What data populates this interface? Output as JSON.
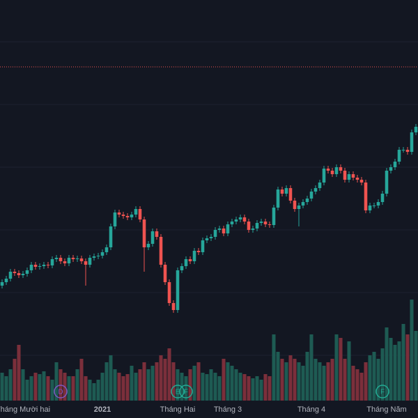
{
  "chart_data": {
    "type": "candlestick",
    "open": [
      165,
      170,
      175,
      185,
      183,
      180,
      182,
      187,
      195,
      192,
      193,
      195,
      194,
      203,
      205,
      200,
      197,
      205,
      203,
      204,
      200,
      195,
      205,
      207,
      208,
      213,
      220,
      250,
      270,
      267,
      265,
      263,
      267,
      275,
      260,
      220,
      225,
      243,
      235,
      195,
      170,
      140,
      130,
      187,
      193,
      203,
      200,
      215,
      213,
      230,
      233,
      235,
      245,
      247,
      240,
      253,
      257,
      260,
      263,
      257,
      245,
      247,
      255,
      257,
      253,
      252,
      277,
      303,
      297,
      305,
      287,
      275,
      280,
      285,
      290,
      300,
      305,
      313,
      333,
      330,
      325,
      335,
      330,
      317,
      325,
      320,
      317,
      313,
      273,
      280,
      280,
      285,
      297,
      330,
      335,
      343,
      360,
      360,
      357,
      385
    ],
    "high": [
      174,
      179,
      189,
      189,
      187,
      186,
      191,
      199,
      199,
      197,
      199,
      199,
      207,
      209,
      209,
      204,
      209,
      209,
      208,
      208,
      204,
      209,
      211,
      212,
      217,
      224,
      254,
      274,
      274,
      271,
      269,
      271,
      279,
      279,
      264,
      229,
      247,
      247,
      239,
      199,
      174,
      144,
      191,
      197,
      207,
      207,
      219,
      219,
      234,
      237,
      239,
      249,
      251,
      251,
      257,
      261,
      264,
      267,
      267,
      261,
      251,
      259,
      261,
      261,
      257,
      281,
      307,
      307,
      309,
      309,
      291,
      284,
      289,
      294,
      304,
      309,
      317,
      337,
      337,
      334,
      339,
      339,
      334,
      329,
      329,
      324,
      321,
      317,
      284,
      284,
      289,
      301,
      334,
      339,
      347,
      364,
      364,
      364,
      389,
      397
    ],
    "low": [
      161,
      166,
      171,
      179,
      176,
      176,
      178,
      183,
      188,
      188,
      189,
      190,
      190,
      199,
      196,
      193,
      193,
      199,
      199,
      196,
      165,
      191,
      201,
      203,
      204,
      209,
      216,
      246,
      263,
      261,
      259,
      259,
      263,
      256,
      185,
      216,
      221,
      231,
      191,
      166,
      136,
      126,
      126,
      183,
      189,
      196,
      196,
      209,
      209,
      226,
      229,
      231,
      241,
      236,
      236,
      249,
      253,
      256,
      253,
      241,
      241,
      243,
      251,
      249,
      248,
      248,
      273,
      293,
      293,
      283,
      271,
      250,
      276,
      281,
      286,
      296,
      301,
      309,
      326,
      321,
      321,
      326,
      313,
      313,
      316,
      313,
      309,
      269,
      269,
      276,
      276,
      281,
      293,
      326,
      331,
      339,
      356,
      353,
      353,
      381
    ],
    "close": [
      170,
      175,
      185,
      183,
      180,
      182,
      187,
      195,
      192,
      193,
      195,
      194,
      203,
      205,
      200,
      197,
      205,
      203,
      204,
      200,
      195,
      205,
      207,
      208,
      213,
      220,
      250,
      270,
      267,
      265,
      263,
      267,
      275,
      260,
      220,
      225,
      243,
      235,
      195,
      170,
      140,
      130,
      187,
      193,
      203,
      200,
      215,
      213,
      230,
      233,
      235,
      245,
      247,
      240,
      253,
      257,
      260,
      263,
      257,
      245,
      247,
      255,
      257,
      253,
      252,
      277,
      303,
      297,
      305,
      287,
      275,
      280,
      285,
      290,
      300,
      305,
      313,
      333,
      330,
      325,
      335,
      330,
      317,
      325,
      320,
      317,
      313,
      273,
      280,
      280,
      285,
      297,
      330,
      335,
      343,
      360,
      360,
      357,
      385,
      393
    ],
    "volume": [
      40,
      35,
      45,
      60,
      80,
      45,
      30,
      35,
      40,
      38,
      42,
      35,
      30,
      55,
      45,
      40,
      35,
      35,
      45,
      60,
      35,
      30,
      25,
      30,
      40,
      55,
      65,
      45,
      40,
      35,
      38,
      50,
      40,
      45,
      55,
      45,
      50,
      55,
      65,
      60,
      75,
      55,
      45,
      40,
      35,
      45,
      50,
      55,
      40,
      38,
      45,
      40,
      35,
      60,
      55,
      50,
      45,
      40,
      38,
      35,
      32,
      35,
      30,
      38,
      35,
      95,
      70,
      60,
      55,
      65,
      60,
      55,
      50,
      70,
      95,
      60,
      55,
      50,
      55,
      60,
      95,
      90,
      60,
      85,
      50,
      45,
      40,
      55,
      65,
      70,
      60,
      75,
      105,
      90,
      80,
      85,
      110,
      95,
      145,
      100
    ],
    "categories": [
      null,
      null,
      null,
      null,
      null,
      "Tháng Mười hai",
      null,
      null,
      null,
      null,
      null,
      null,
      null,
      null,
      null,
      null,
      null,
      null,
      null,
      null,
      null,
      null,
      null,
      null,
      "2021",
      null,
      null,
      null,
      null,
      null,
      null,
      null,
      null,
      null,
      null,
      null,
      null,
      null,
      null,
      null,
      null,
      null,
      "Tháng Hai",
      null,
      null,
      null,
      null,
      null,
      null,
      null,
      null,
      null,
      null,
      null,
      "Tháng 3",
      null,
      null,
      null,
      null,
      null,
      null,
      null,
      null,
      null,
      null,
      null,
      null,
      null,
      null,
      null,
      null,
      null,
      null,
      null,
      "Tháng 4",
      null,
      null,
      null,
      null,
      null,
      null,
      null,
      null,
      null,
      null,
      null,
      null,
      null,
      null,
      null,
      null,
      null,
      "Tháng Năm",
      null,
      null,
      null,
      null,
      null,
      null,
      null
    ],
    "events": [
      null,
      null,
      null,
      null,
      null,
      null,
      null,
      null,
      null,
      null,
      null,
      null,
      null,
      null,
      {
        "label": "D",
        "color": "#7e57c2"
      },
      null,
      null,
      null,
      null,
      null,
      null,
      null,
      null,
      null,
      null,
      null,
      null,
      null,
      null,
      null,
      null,
      null,
      null,
      null,
      null,
      null,
      null,
      null,
      null,
      null,
      null,
      null,
      {
        "label": "E",
        "color": "#22ab94"
      },
      null,
      {
        "label": "F",
        "color": "#22ab94"
      },
      null,
      null,
      null,
      null,
      null,
      null,
      null,
      null,
      null,
      null,
      null,
      null,
      null,
      null,
      null,
      null,
      null,
      null,
      null,
      null,
      null,
      null,
      null,
      null,
      null,
      null,
      null,
      null,
      null,
      null,
      null,
      null,
      null,
      null,
      null,
      null,
      null,
      null,
      null,
      null,
      null,
      null,
      null,
      null,
      null,
      null,
      {
        "label": "F",
        "color": "#22ab94"
      },
      null,
      null,
      null,
      null,
      null,
      null,
      null,
      null
    ],
    "ylim": [
      0,
      575
    ],
    "volume_lim": [
      0,
      575
    ],
    "price_line": 479,
    "up_color": "#26a69a",
    "down_color": "#ef5350",
    "volume_up_color": "#1e5b53",
    "volume_down_color": "#7b2f3b"
  }
}
